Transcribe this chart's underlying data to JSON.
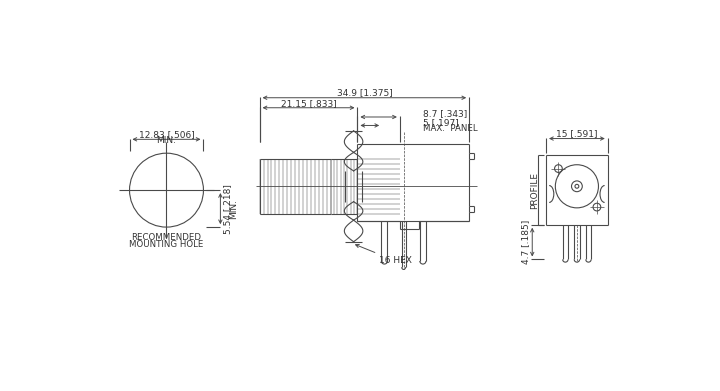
{
  "bg_color": "#ffffff",
  "line_color": "#4a4a4a",
  "text_color": "#333333",
  "fig_width": 7.2,
  "fig_height": 3.91,
  "annotations": {
    "dim1": "34.9 [1.375]",
    "dim2": "21.15 [.833]",
    "dim3": "8.7 [.343]",
    "dim4": "5 [.197]",
    "dim4b": "MAX.  PANEL",
    "dim5": "12.83 [.506]",
    "dim5b": "MIN.",
    "dim6": "5.54 [.218]",
    "dim6b": "MIN.",
    "dim7": "15 [.591]",
    "dim8": "4.7 [.185]",
    "hex_label": "16 HEX",
    "profile_label": "PROFILE",
    "mount_label1": "RECOMMENDED",
    "mount_label2": "MOUNTING HOLE"
  }
}
